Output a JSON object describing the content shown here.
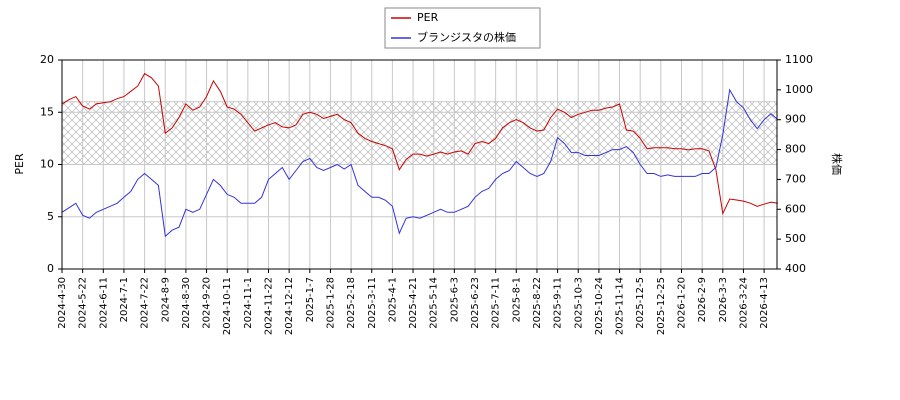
{
  "chart_data": {
    "type": "line",
    "categories": [
      "2024-4-30",
      null,
      null,
      "2024-5-22",
      null,
      null,
      "2024-6-11",
      null,
      null,
      "2024-7-1",
      null,
      null,
      "2024-7-22",
      null,
      null,
      "2024-8-9",
      null,
      null,
      "2024-8-30",
      null,
      null,
      "2024-9-20",
      null,
      null,
      "2024-10-11",
      null,
      null,
      "2024-11-1",
      null,
      null,
      "2024-11-22",
      null,
      null,
      "2024-12-12",
      null,
      null,
      "2025-1-7",
      null,
      null,
      "2025-1-28",
      null,
      null,
      "2025-2-18",
      null,
      null,
      "2025-3-11",
      null,
      null,
      "2025-4-1",
      null,
      null,
      "2025-4-21",
      null,
      null,
      "2025-5-14",
      null,
      null,
      "2025-6-3",
      null,
      null,
      "2025-6-23",
      null,
      null,
      "2025-7-11",
      null,
      null,
      "2025-8-1",
      null,
      null,
      "2025-8-22",
      null,
      null,
      "2025-9-11",
      null,
      null,
      "2025-10-3",
      null,
      null,
      "2025-10-24",
      null,
      null,
      "2025-11-14",
      null,
      null,
      "2025-12-5",
      null,
      null,
      "2025-12-25",
      null,
      null,
      "2026-1-20",
      null,
      null,
      "2026-2-9",
      null,
      null,
      "2026-3-3",
      null,
      null,
      "2026-3-24",
      null,
      null,
      "2026-4-13",
      null,
      null
    ],
    "series": [
      {
        "name": "PER",
        "color": "#cc0000",
        "values": [
          15.8,
          16.2,
          16.5,
          15.6,
          15.3,
          15.8,
          15.9,
          16.0,
          16.3,
          16.5,
          17.0,
          17.5,
          18.7,
          18.3,
          17.5,
          13.0,
          13.5,
          14.5,
          15.8,
          15.2,
          15.5,
          16.5,
          18.0,
          17.0,
          15.5,
          15.3,
          14.8,
          14.0,
          13.2,
          13.5,
          13.8,
          14.0,
          13.6,
          13.5,
          13.8,
          14.8,
          15.0,
          14.8,
          14.4,
          14.6,
          14.8,
          14.3,
          14.0,
          13.0,
          12.5,
          12.2,
          12.0,
          11.8,
          11.5,
          9.5,
          10.5,
          11.0,
          11.0,
          10.8,
          11.0,
          11.2,
          11.0,
          11.2,
          11.3,
          11.0,
          12.0,
          12.2,
          12.0,
          12.5,
          13.5,
          14.0,
          14.3,
          14.0,
          13.5,
          13.2,
          13.3,
          14.5,
          15.3,
          15.0,
          14.5,
          14.8,
          15.0,
          15.2,
          15.2,
          15.4,
          15.5,
          15.8,
          13.3,
          13.2,
          12.5,
          11.5,
          11.6,
          11.6,
          11.6,
          11.5,
          11.5,
          11.4,
          11.5,
          11.5,
          11.3,
          9.5,
          5.3,
          6.7,
          6.6,
          6.5,
          6.3,
          6.0,
          6.2,
          6.4,
          6.3
        ]
      },
      {
        "name": "ブランジスタの株価",
        "color": "#3333dd",
        "axis": "y2",
        "values": [
          590,
          605,
          620,
          580,
          570,
          590,
          600,
          610,
          620,
          640,
          660,
          700,
          720,
          700,
          680,
          510,
          530,
          540,
          600,
          590,
          600,
          650,
          700,
          680,
          650,
          640,
          620,
          620,
          620,
          640,
          700,
          720,
          740,
          700,
          730,
          760,
          770,
          740,
          730,
          740,
          750,
          735,
          750,
          680,
          660,
          640,
          640,
          630,
          610,
          520,
          570,
          575,
          570,
          580,
          590,
          600,
          590,
          590,
          600,
          610,
          640,
          660,
          670,
          700,
          720,
          730,
          760,
          740,
          720,
          710,
          720,
          760,
          840,
          820,
          790,
          790,
          780,
          780,
          780,
          790,
          800,
          800,
          810,
          790,
          750,
          720,
          720,
          710,
          715,
          710,
          710,
          710,
          710,
          720,
          720,
          740,
          850,
          1000,
          960,
          940,
          900,
          870,
          900,
          920,
          900
        ]
      }
    ],
    "ylabel": "PER",
    "y2label": "株価",
    "ylim": [
      0,
      20
    ],
    "yticks": [
      0,
      5,
      10,
      15,
      20
    ],
    "y2lim": [
      400,
      1100
    ],
    "y2ticks": [
      400,
      500,
      600,
      700,
      800,
      900,
      1000,
      1100
    ],
    "shaded_range": [
      10,
      16
    ],
    "grid": true,
    "legend": "top"
  }
}
